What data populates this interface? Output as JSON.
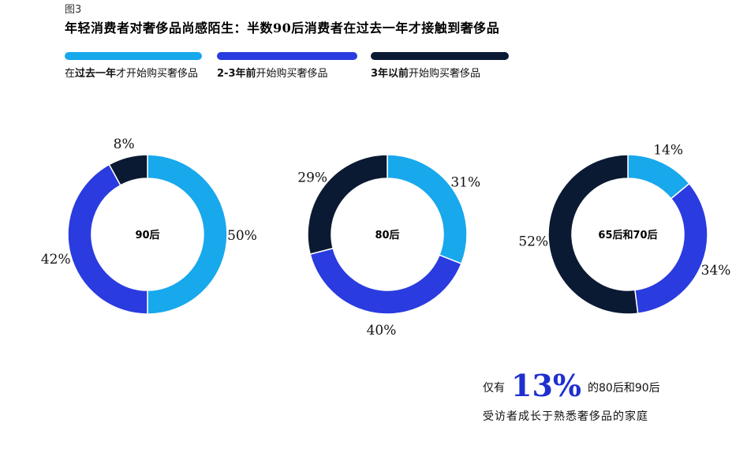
{
  "figure_label": "图3",
  "title": "年轻消费者对奢侈品尚感陌生：半数90后消费者在过去一年才接触到奢侈品",
  "legend": [
    {
      "color": "#18a8ec",
      "pre": "在",
      "bold": "过去一年",
      "post": "才开始购买奢侈品"
    },
    {
      "color": "#2a3be0",
      "pre": "",
      "bold": "2-3年前",
      "post": "开始购买奢侈品"
    },
    {
      "color": "#0b1a33",
      "pre": "",
      "bold": "3年以前",
      "post": "开始购买奢侈品"
    }
  ],
  "chart_data": [
    {
      "type": "pie",
      "center_label": "90后",
      "slices": [
        {
          "name": "在过去一年才开始购买奢侈品",
          "value": 50,
          "label": "50%"
        },
        {
          "name": "2-3年前开始购买奢侈品",
          "value": 42,
          "label": "42%"
        },
        {
          "name": "3年以前开始购买奢侈品",
          "value": 8,
          "label": "8%"
        }
      ]
    },
    {
      "type": "pie",
      "center_label": "80后",
      "slices": [
        {
          "name": "在过去一年才开始购买奢侈品",
          "value": 31,
          "label": "31%"
        },
        {
          "name": "2-3年前开始购买奢侈品",
          "value": 40,
          "label": "40%"
        },
        {
          "name": "3年以前开始购买奢侈品",
          "value": 29,
          "label": "29%"
        }
      ]
    },
    {
      "type": "pie",
      "center_label": "65后和70后",
      "slices": [
        {
          "name": "在过去一年才开始购买奢侈品",
          "value": 14,
          "label": "14%"
        },
        {
          "name": "2-3年前开始购买奢侈品",
          "value": 34,
          "label": "34%"
        },
        {
          "name": "3年以前开始购买奢侈品",
          "value": 52,
          "label": "52%"
        }
      ]
    }
  ],
  "note": {
    "prefix": "仅有",
    "highlight": "13%",
    "suffix": "的80后和90后",
    "line2": "受访者成长于熟悉奢侈品的家庭"
  }
}
